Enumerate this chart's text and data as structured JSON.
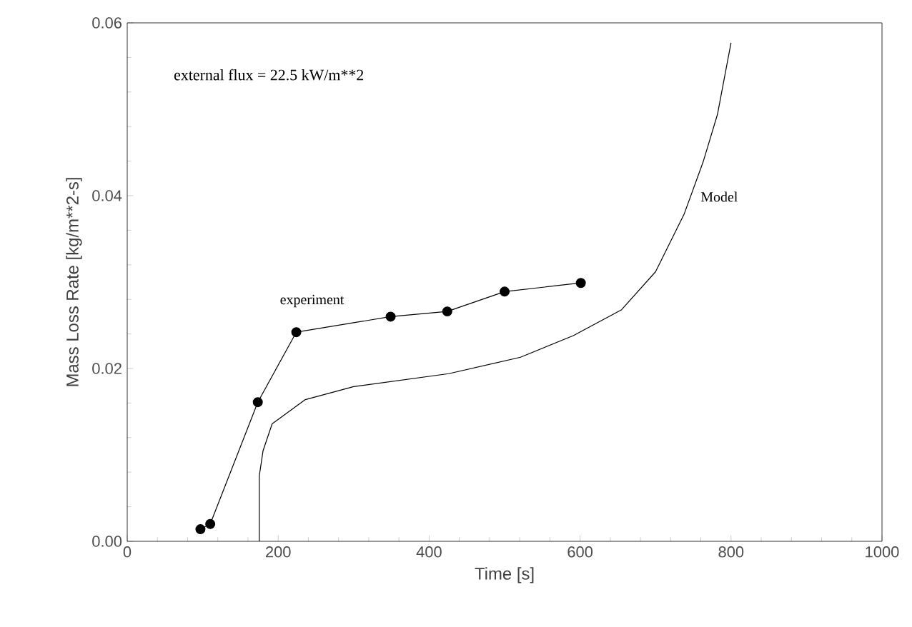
{
  "chart_data": {
    "type": "line",
    "xlabel": "Time [s]",
    "ylabel": "Mass Loss Rate [kg/m**2-s]",
    "annotations": [
      "external flux = 22.5 kW/m**2"
    ],
    "xlim": [
      0,
      1000
    ],
    "xticks": [
      0,
      200,
      400,
      600,
      800,
      1000
    ],
    "ylim": [
      0,
      0.06
    ],
    "yticks": [
      {
        "value": 0,
        "label": "0.00"
      },
      {
        "value": 0.02,
        "label": "0.02"
      },
      {
        "value": 0.04,
        "label": "0.04"
      },
      {
        "value": 0.06,
        "label": "0.06"
      }
    ],
    "grid": false,
    "series": [
      {
        "name": "experiment",
        "color": "#000000",
        "marker": "circle",
        "x": [
          97,
          110,
          173,
          224,
          349,
          424,
          500,
          601
        ],
        "values": [
          0.0014,
          0.002,
          0.0161,
          0.0242,
          0.026,
          0.0266,
          0.0289,
          0.0299
        ]
      },
      {
        "name": "Model",
        "color": "#000000",
        "marker": "none",
        "x": [
          175,
          175,
          180,
          192,
          236,
          300,
          426,
          521,
          591,
          655,
          700,
          738,
          763,
          782,
          800
        ],
        "values": [
          0,
          0.0076,
          0.0105,
          0.0136,
          0.0164,
          0.0179,
          0.0194,
          0.0213,
          0.0238,
          0.0268,
          0.0312,
          0.0379,
          0.0439,
          0.0494,
          0.0577
        ]
      }
    ]
  }
}
